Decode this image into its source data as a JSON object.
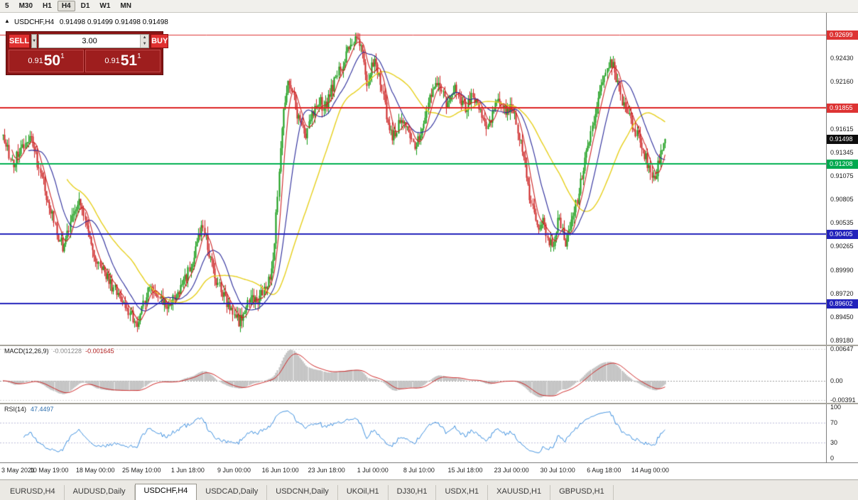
{
  "toolbar": {
    "timeframes": [
      {
        "label": "5",
        "active": false
      },
      {
        "label": "M30",
        "active": false
      },
      {
        "label": "H1",
        "active": false
      },
      {
        "label": "H4",
        "active": true
      },
      {
        "label": "D1",
        "active": false
      },
      {
        "label": "W1",
        "active": false
      },
      {
        "label": "MN",
        "active": false
      }
    ]
  },
  "chart": {
    "symbol_tf": "USDCHF,H4",
    "ohlc": "0.91498 0.91499 0.91498 0.91498",
    "toggle_icon": "▲"
  },
  "trade_panel": {
    "sell_label": "SELL",
    "buy_label": "BUY",
    "volume": "3.00",
    "sell_price": {
      "small": "0.91",
      "big": "50",
      "sup": "1"
    },
    "buy_price": {
      "small": "0.91",
      "big": "51",
      "sup": "1"
    }
  },
  "price_axis": {
    "ticks": [
      {
        "label": "0.92430",
        "value": 0.9243
      },
      {
        "label": "0.92160",
        "value": 0.9216
      },
      {
        "label": "0.91615",
        "value": 0.91615
      },
      {
        "label": "0.91345",
        "value": 0.91345
      },
      {
        "label": "0.91075",
        "value": 0.91075
      },
      {
        "label": "0.90805",
        "value": 0.90805
      },
      {
        "label": "0.90535",
        "value": 0.90535
      },
      {
        "label": "0.90265",
        "value": 0.90265
      },
      {
        "label": "0.89990",
        "value": 0.8999
      },
      {
        "label": "0.89720",
        "value": 0.8972
      },
      {
        "label": "0.89450",
        "value": 0.8945
      },
      {
        "label": "0.89180",
        "value": 0.8918
      }
    ],
    "badges": [
      {
        "label": "0.92699",
        "value": 0.92699,
        "bg": "#dd3333"
      },
      {
        "label": "0.91855",
        "value": 0.91855,
        "bg": "#dd3333"
      },
      {
        "label": "0.91498",
        "value": 0.91498,
        "bg": "#0d0d0d"
      },
      {
        "label": "0.91208",
        "value": 0.91208,
        "bg": "#00a94f"
      },
      {
        "label": "0.90405",
        "value": 0.90405,
        "bg": "#2222bb"
      },
      {
        "label": "0.89602",
        "value": 0.89602,
        "bg": "#2222bb"
      }
    ]
  },
  "macd_panel": {
    "label": "MACD(12,26,9)",
    "value_main": "-0.001228",
    "value_signal": "-0.001645",
    "axis": [
      {
        "label": "0.00647",
        "value": 0.00647
      },
      {
        "label": "0.00",
        "value": 0
      },
      {
        "label": "-0.00391",
        "value": -0.00391
      }
    ]
  },
  "rsi_panel": {
    "label": "RSI(14)",
    "value": "47.4497",
    "axis": [
      {
        "label": "100",
        "value": 100
      },
      {
        "label": "70",
        "value": 70
      },
      {
        "label": "30",
        "value": 30
      },
      {
        "label": "0",
        "value": 0
      }
    ],
    "levels": [
      30,
      70
    ]
  },
  "time_axis": {
    "bars_per_label": 31,
    "labels": [
      "3 May 2021",
      "10 May 19:00",
      "18 May 00:00",
      "25 May 10:00",
      "1 Jun 18:00",
      "9 Jun 00:00",
      "16 Jun 10:00",
      "23 Jun 18:00",
      "1 Jul 00:00",
      "8 Jul 10:00",
      "15 Jul 18:00",
      "23 Jul 00:00",
      "30 Jul 10:00",
      "6 Aug 18:00",
      "14 Aug 00:00"
    ]
  },
  "tabs": [
    {
      "label": "EURUSD,H4",
      "active": false
    },
    {
      "label": "AUDUSD,Daily",
      "active": false
    },
    {
      "label": "USDCHF,H4",
      "active": true
    },
    {
      "label": "USDCAD,Daily",
      "active": false
    },
    {
      "label": "USDCNH,Daily",
      "active": false
    },
    {
      "label": "UKOil,H1",
      "active": false
    },
    {
      "label": "DJ30,H1",
      "active": false
    },
    {
      "label": "USDX,H1",
      "active": false
    },
    {
      "label": "XAUUSD,H1",
      "active": false
    },
    {
      "label": "GBPUSD,H1",
      "active": false
    }
  ],
  "chart_data": {
    "type": "candlestick",
    "symbol": "USDCHF",
    "timeframe": "H4",
    "bars_total": 445,
    "bar_spacing_px": 2.1,
    "price_range": {
      "top": 0.9295,
      "bottom": 0.8913
    },
    "current_price": 0.91498,
    "up_color": "#129a12",
    "down_color": "#cc2222",
    "horizontal_lines": [
      {
        "price": 0.92699,
        "color": "#dd3333",
        "width": 1
      },
      {
        "price": 0.91855,
        "color": "#dd2222",
        "width": 2
      },
      {
        "price": 0.91208,
        "color": "#00b050",
        "width": 2
      },
      {
        "price": 0.90405,
        "color": "#2222bb",
        "width": 2
      },
      {
        "price": 0.89602,
        "color": "#2222bb",
        "width": 2
      }
    ],
    "moving_averages": [
      {
        "period": 7,
        "color": "#cc2222"
      },
      {
        "period": 18,
        "color": "#2a2a9a"
      },
      {
        "period": 44,
        "color": "#e6cf1b"
      }
    ],
    "macd": {
      "fast": 12,
      "slow": 26,
      "signal": 9,
      "histogram_color": "#bdbdbd",
      "signal_color": "#cc2222"
    },
    "rsi": {
      "period": 14,
      "color": "#3b8ede"
    },
    "price_path": [
      [
        0,
        0.9152
      ],
      [
        6,
        0.912
      ],
      [
        12,
        0.9138
      ],
      [
        18,
        0.9152
      ],
      [
        24,
        0.9118
      ],
      [
        30,
        0.908
      ],
      [
        36,
        0.9043
      ],
      [
        40,
        0.9025
      ],
      [
        46,
        0.9058
      ],
      [
        52,
        0.9078
      ],
      [
        58,
        0.904
      ],
      [
        62,
        0.9008
      ],
      [
        68,
        0.8995
      ],
      [
        74,
        0.8978
      ],
      [
        80,
        0.8962
      ],
      [
        86,
        0.8945
      ],
      [
        90,
        0.8935
      ],
      [
        93,
        0.8958
      ],
      [
        98,
        0.8978
      ],
      [
        104,
        0.897
      ],
      [
        110,
        0.8958
      ],
      [
        116,
        0.8972
      ],
      [
        122,
        0.8988
      ],
      [
        127,
        0.901
      ],
      [
        131,
        0.9042
      ],
      [
        134,
        0.9048
      ],
      [
        138,
        0.902
      ],
      [
        142,
        0.899
      ],
      [
        147,
        0.8972
      ],
      [
        151,
        0.8958
      ],
      [
        155,
        0.8948
      ],
      [
        158,
        0.8938
      ],
      [
        162,
        0.8952
      ],
      [
        166,
        0.8968
      ],
      [
        170,
        0.896
      ],
      [
        174,
        0.8975
      ],
      [
        178,
        0.8985
      ],
      [
        181,
        0.901
      ],
      [
        183,
        0.906
      ],
      [
        185,
        0.911
      ],
      [
        187,
        0.916
      ],
      [
        189,
        0.9195
      ],
      [
        191,
        0.9218
      ],
      [
        194,
        0.9205
      ],
      [
        197,
        0.918
      ],
      [
        200,
        0.9165
      ],
      [
        203,
        0.9155
      ],
      [
        206,
        0.917
      ],
      [
        209,
        0.9185
      ],
      [
        212,
        0.9195
      ],
      [
        215,
        0.9185
      ],
      [
        217,
        0.9192
      ],
      [
        220,
        0.9205
      ],
      [
        223,
        0.9218
      ],
      [
        226,
        0.923
      ],
      [
        229,
        0.9242
      ],
      [
        232,
        0.9252
      ],
      [
        235,
        0.9262
      ],
      [
        238,
        0.9268
      ],
      [
        240,
        0.9255
      ],
      [
        242,
        0.9235
      ],
      [
        244,
        0.9215
      ],
      [
        246,
        0.9228
      ],
      [
        248,
        0.924
      ],
      [
        250,
        0.9235
      ],
      [
        252,
        0.922
      ],
      [
        255,
        0.9195
      ],
      [
        258,
        0.917
      ],
      [
        261,
        0.915
      ],
      [
        264,
        0.9162
      ],
      [
        267,
        0.9178
      ],
      [
        270,
        0.9168
      ],
      [
        273,
        0.9152
      ],
      [
        276,
        0.914
      ],
      [
        279,
        0.9155
      ],
      [
        282,
        0.9172
      ],
      [
        285,
        0.919
      ],
      [
        288,
        0.9205
      ],
      [
        291,
        0.9218
      ],
      [
        294,
        0.9208
      ],
      [
        297,
        0.9192
      ],
      [
        300,
        0.92
      ],
      [
        303,
        0.9212
      ],
      [
        306,
        0.9198
      ],
      [
        309,
        0.9185
      ],
      [
        312,
        0.9192
      ],
      [
        315,
        0.92
      ],
      [
        318,
        0.919
      ],
      [
        321,
        0.9178
      ],
      [
        324,
        0.9165
      ],
      [
        327,
        0.9175
      ],
      [
        330,
        0.9188
      ],
      [
        333,
        0.9195
      ],
      [
        336,
        0.9185
      ],
      [
        339,
        0.9178
      ],
      [
        341,
        0.9188
      ],
      [
        344,
        0.917
      ],
      [
        347,
        0.9145
      ],
      [
        350,
        0.9115
      ],
      [
        353,
        0.9085
      ],
      [
        356,
        0.906
      ],
      [
        359,
        0.904
      ],
      [
        362,
        0.9052
      ],
      [
        365,
        0.9035
      ],
      [
        368,
        0.9025
      ],
      [
        371,
        0.9045
      ],
      [
        373,
        0.906
      ],
      [
        375,
        0.9042
      ],
      [
        377,
        0.903
      ],
      [
        380,
        0.9048
      ],
      [
        383,
        0.9065
      ],
      [
        386,
        0.909
      ],
      [
        389,
        0.9115
      ],
      [
        392,
        0.914
      ],
      [
        395,
        0.9165
      ],
      [
        398,
        0.919
      ],
      [
        401,
        0.9215
      ],
      [
        404,
        0.9232
      ],
      [
        407,
        0.924
      ],
      [
        410,
        0.9228
      ],
      [
        413,
        0.9205
      ],
      [
        416,
        0.919
      ],
      [
        419,
        0.9178
      ],
      [
        422,
        0.9168
      ],
      [
        425,
        0.9155
      ],
      [
        428,
        0.914
      ],
      [
        431,
        0.9128
      ],
      [
        434,
        0.9112
      ],
      [
        437,
        0.9105
      ],
      [
        440,
        0.9125
      ],
      [
        442,
        0.914
      ],
      [
        444,
        0.915
      ]
    ]
  }
}
